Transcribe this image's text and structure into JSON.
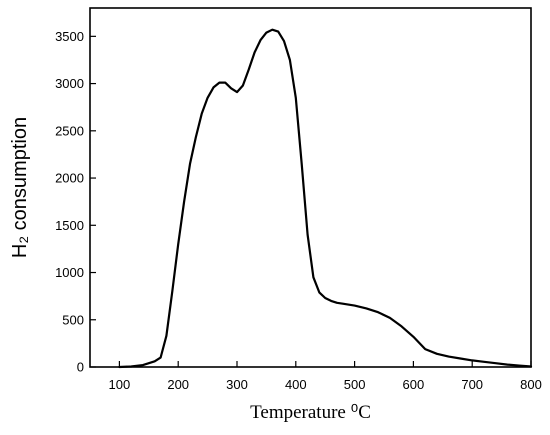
{
  "chart_data": {
    "type": "line",
    "title": "",
    "xlabel": "Temperature ⁰C",
    "ylabel": "H₂ consumption",
    "xlim": [
      50,
      800
    ],
    "ylim": [
      0,
      3800
    ],
    "x_ticks": [
      100,
      200,
      300,
      400,
      500,
      600,
      700,
      800
    ],
    "y_ticks": [
      0,
      500,
      1000,
      1500,
      2000,
      2500,
      3000,
      3500
    ],
    "grid": false,
    "legend": "none",
    "series": [
      {
        "color": "#000000",
        "x": [
          100,
          120,
          140,
          160,
          170,
          180,
          190,
          200,
          210,
          220,
          230,
          240,
          250,
          260,
          270,
          280,
          290,
          300,
          310,
          320,
          330,
          340,
          350,
          360,
          370,
          380,
          390,
          400,
          410,
          420,
          430,
          440,
          450,
          460,
          470,
          480,
          500,
          520,
          540,
          560,
          580,
          600,
          620,
          640,
          660,
          680,
          700,
          720,
          740,
          760,
          780,
          800
        ],
        "y": [
          0,
          5,
          20,
          60,
          100,
          330,
          800,
          1300,
          1750,
          2150,
          2430,
          2680,
          2850,
          2960,
          3010,
          3010,
          2950,
          2910,
          2980,
          3150,
          3330,
          3460,
          3540,
          3570,
          3550,
          3450,
          3250,
          2850,
          2150,
          1400,
          950,
          790,
          730,
          700,
          680,
          670,
          650,
          620,
          580,
          520,
          430,
          320,
          190,
          140,
          110,
          90,
          70,
          55,
          40,
          25,
          15,
          5
        ]
      }
    ]
  }
}
